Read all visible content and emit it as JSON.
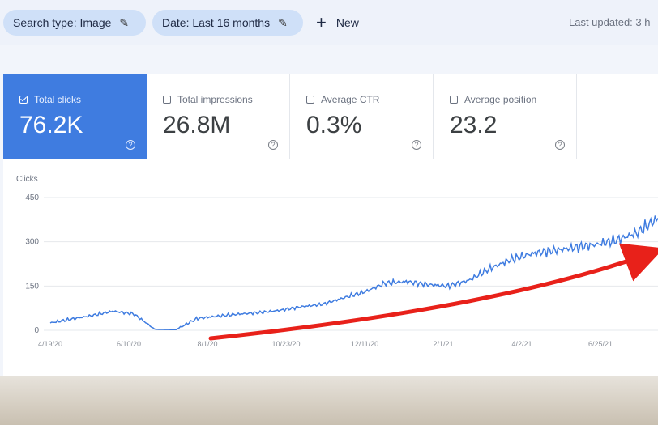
{
  "filter_bar": {
    "search_type_chip": "Search type: Image",
    "date_chip": "Date: Last 16 months",
    "new_label": "New",
    "last_updated": "Last updated: 3 h"
  },
  "metrics": [
    {
      "label": "Total clicks",
      "value": "76.2K",
      "checked": true
    },
    {
      "label": "Total impressions",
      "value": "26.8M",
      "checked": false
    },
    {
      "label": "Average CTR",
      "value": "0.3%",
      "checked": false
    },
    {
      "label": "Average position",
      "value": "23.2",
      "checked": false
    }
  ],
  "chart_data": {
    "type": "line",
    "ylabel": "Clicks",
    "ylim": [
      0,
      450
    ],
    "yticks": [
      "0",
      "150",
      "300",
      "450"
    ],
    "xticks": [
      "4/19/20",
      "6/10/20",
      "8/1/20",
      "10/23/20",
      "12/11/20",
      "2/1/21",
      "4/2/21",
      "6/25/21"
    ],
    "series": [
      {
        "color": "#3f7ce0",
        "values": [
          25,
          38,
          50,
          65,
          55,
          3,
          2,
          40,
          48,
          55,
          60,
          68,
          80,
          88,
          110,
          130,
          160,
          165,
          155,
          150,
          170,
          210,
          240,
          260,
          270,
          280,
          290,
          305,
          330,
          380
        ]
      }
    ]
  },
  "annotation": {
    "arrow_color": "#e8211a"
  }
}
